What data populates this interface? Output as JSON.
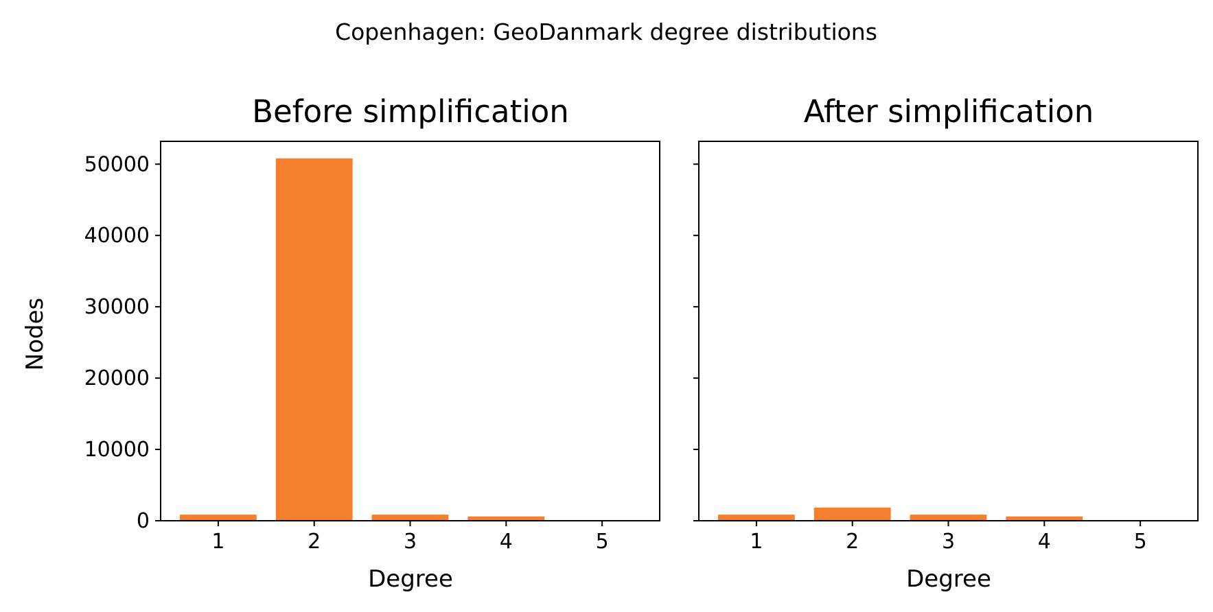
{
  "figure_title": "Copenhagen: GeoDanmark degree distributions",
  "colors": {
    "bar": "#f57f2e",
    "axes": "#000000",
    "background": "#ffffff"
  },
  "chart_data": [
    {
      "type": "bar",
      "title": "Before simplification",
      "xlabel": "Degree",
      "ylabel": "Nodes",
      "categories": [
        "1",
        "2",
        "3",
        "4",
        "5"
      ],
      "values": [
        850,
        50800,
        850,
        600,
        20
      ],
      "ylim": [
        0,
        53200
      ],
      "yticks": [
        "0",
        "10000",
        "20000",
        "30000",
        "40000",
        "50000"
      ],
      "ytick_labels_visible": true,
      "grid": false
    },
    {
      "type": "bar",
      "title": "After simplification",
      "xlabel": "Degree",
      "ylabel": "",
      "categories": [
        "1",
        "2",
        "3",
        "4",
        "5"
      ],
      "values": [
        850,
        1850,
        850,
        600,
        20
      ],
      "ylim": [
        0,
        53200
      ],
      "yticks": [
        "0",
        "10000",
        "20000",
        "30000",
        "40000",
        "50000"
      ],
      "ytick_labels_visible": false,
      "grid": false,
      "sharey": true
    }
  ]
}
